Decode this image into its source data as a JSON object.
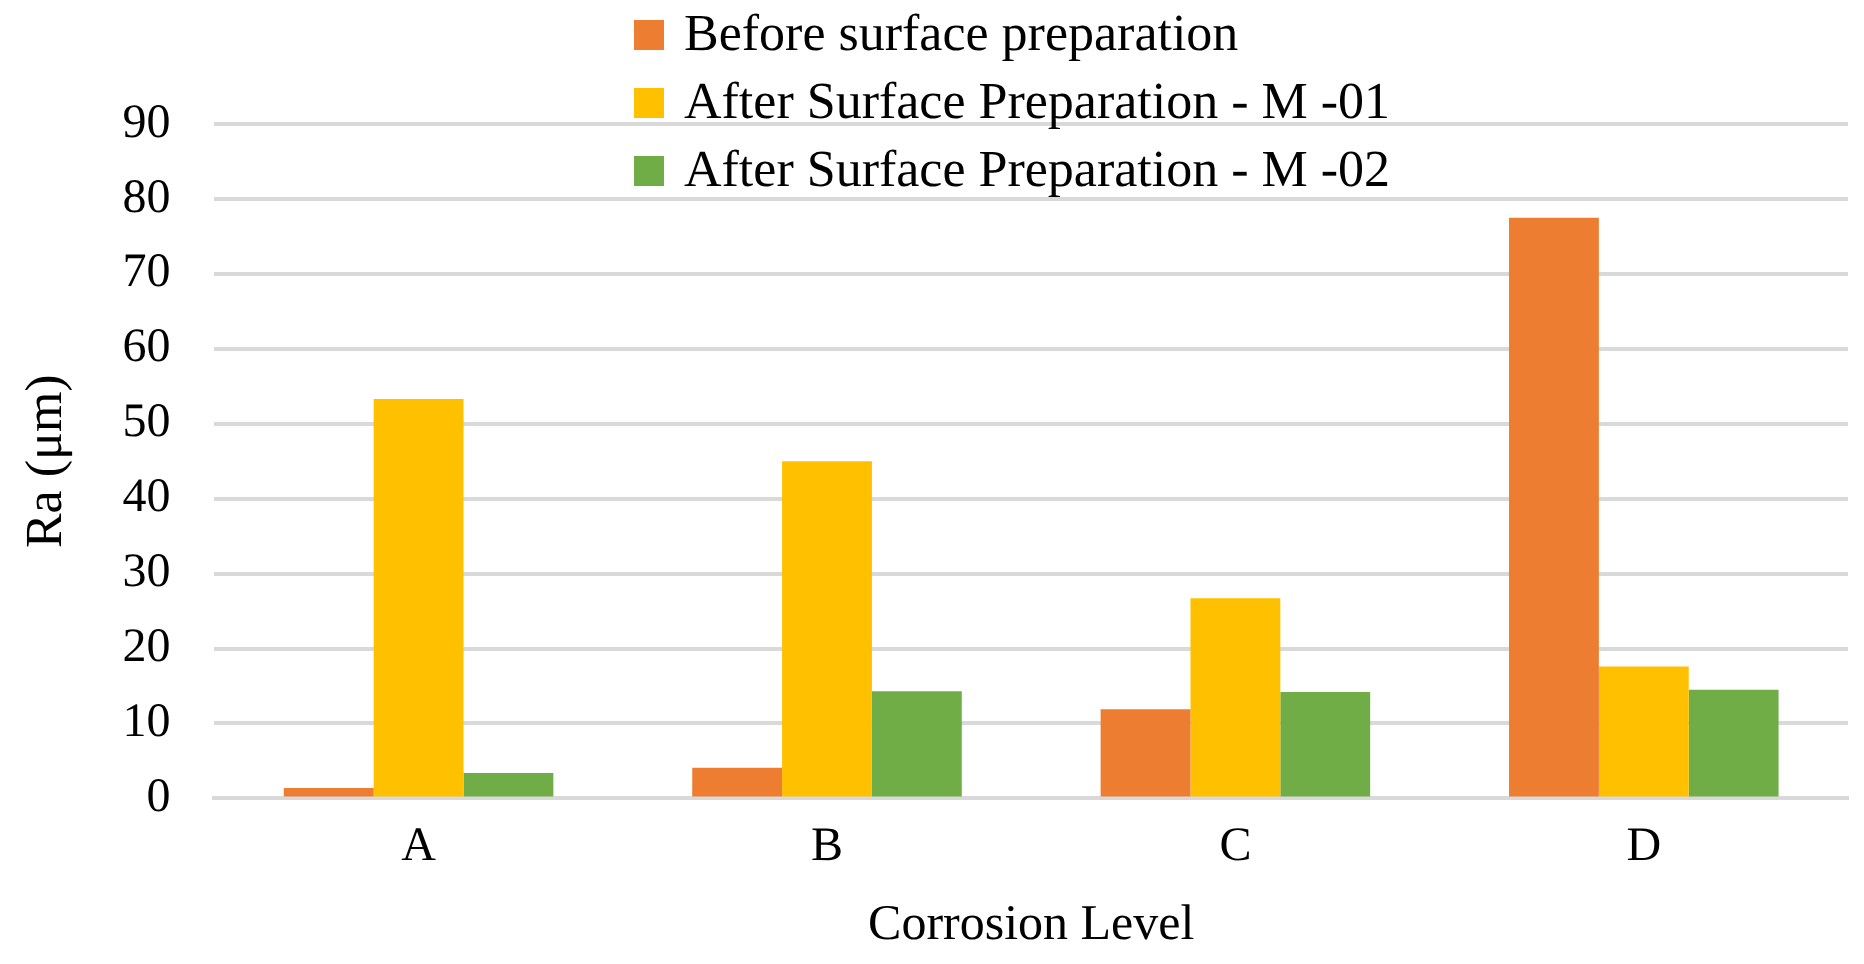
{
  "chart_data": {
    "type": "bar",
    "xlabel": "Corrosion Level",
    "ylabel": "Ra (μm)",
    "categories": [
      "A",
      "B",
      "C",
      "D"
    ],
    "series": [
      {
        "name": "Before surface preparation",
        "color": "#ed7d31",
        "values": [
          1.4,
          4.1,
          11.9,
          77.5
        ]
      },
      {
        "name": "After Surface Preparation - M -01",
        "color": "#ffc000",
        "values": [
          53.3,
          45.0,
          26.7,
          17.6
        ]
      },
      {
        "name": "After Surface Preparation - M -02",
        "color": "#70ad47",
        "values": [
          3.4,
          14.3,
          14.2,
          14.5
        ]
      }
    ],
    "ylim": [
      0,
      90
    ],
    "yticks": [
      0,
      10,
      20,
      30,
      40,
      50,
      60,
      70,
      80,
      90
    ],
    "grid": "y",
    "legend": "top"
  }
}
